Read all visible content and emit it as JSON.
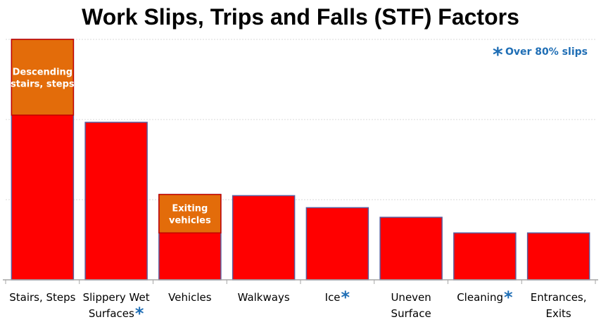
{
  "chart_data": {
    "type": "bar",
    "title": "Work Slips, Trips and Falls (STF) Factors",
    "xlabel": "",
    "ylabel": "",
    "ylim": [
      0,
      100
    ],
    "grid": true,
    "legend_position": "top-right",
    "categories": [
      {
        "lines": [
          "Stairs, Steps"
        ],
        "star": false
      },
      {
        "lines": [
          "Slippery Wet",
          "Surfaces"
        ],
        "star": true
      },
      {
        "lines": [
          "Vehicles"
        ],
        "star": false
      },
      {
        "lines": [
          "Walkways"
        ],
        "star": false
      },
      {
        "lines": [
          "Ice"
        ],
        "star": true
      },
      {
        "lines": [
          "Uneven",
          "Surface"
        ],
        "star": false
      },
      {
        "lines": [
          "Cleaning"
        ],
        "star": true
      },
      {
        "lines": [
          "Entrances,",
          "Exits"
        ],
        "star": false
      }
    ],
    "values": [
      100,
      65.5,
      35.5,
      35,
      30,
      26,
      19.5,
      19.5
    ],
    "highlight": [
      {
        "index": 0,
        "lines": [
          "Descending",
          "stairs, steps"
        ],
        "bottom": 68.5,
        "top": 100
      },
      {
        "index": 2,
        "lines": [
          "Exiting",
          "vehicles"
        ],
        "bottom": 19.5,
        "top": 35.5
      }
    ],
    "legend": {
      "star": "*",
      "text": "Over 80% slips"
    },
    "star_symbol": "*",
    "colors": {
      "bar": "#ff0000",
      "bar_outline": "#5b5b9b",
      "highlight": "#e36c0a",
      "highlight_outline": "#c00000",
      "star": "#1f6eb5",
      "grid": "#d9d9d9",
      "axis": "#a6a6a6"
    }
  }
}
